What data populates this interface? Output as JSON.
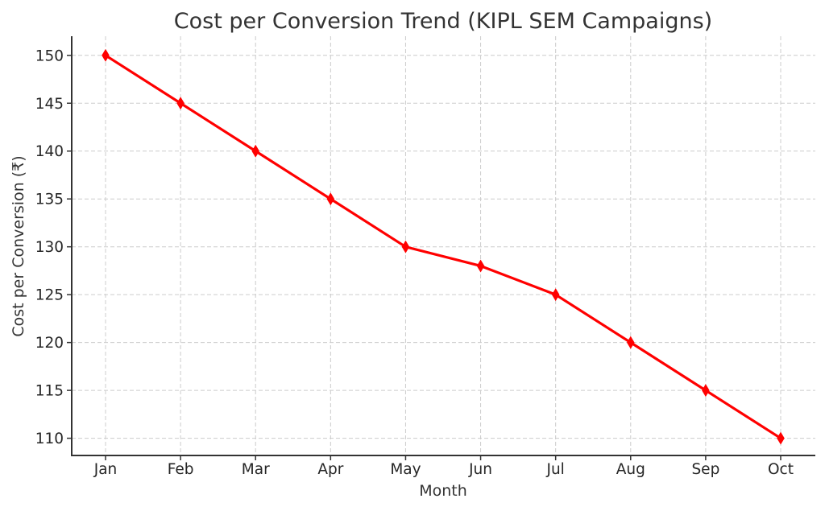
{
  "chart_data": {
    "type": "line",
    "title": "Cost per Conversion Trend (KIPL SEM Campaigns)",
    "xlabel": "Month",
    "ylabel": "Cost per Conversion (₹)",
    "categories": [
      "Jan",
      "Feb",
      "Mar",
      "Apr",
      "May",
      "Jun",
      "Jul",
      "Aug",
      "Sep",
      "Oct"
    ],
    "series": [
      {
        "name": "Cost per Conversion",
        "values": [
          150,
          145,
          140,
          135,
          130,
          128,
          125,
          120,
          115,
          110
        ],
        "color": "#ff0000",
        "marker": "thin-diamond"
      }
    ],
    "ylim": [
      108.2,
      152
    ],
    "yticks": [
      110,
      115,
      120,
      125,
      130,
      135,
      140,
      145,
      150
    ],
    "grid": true,
    "legend": "none"
  }
}
